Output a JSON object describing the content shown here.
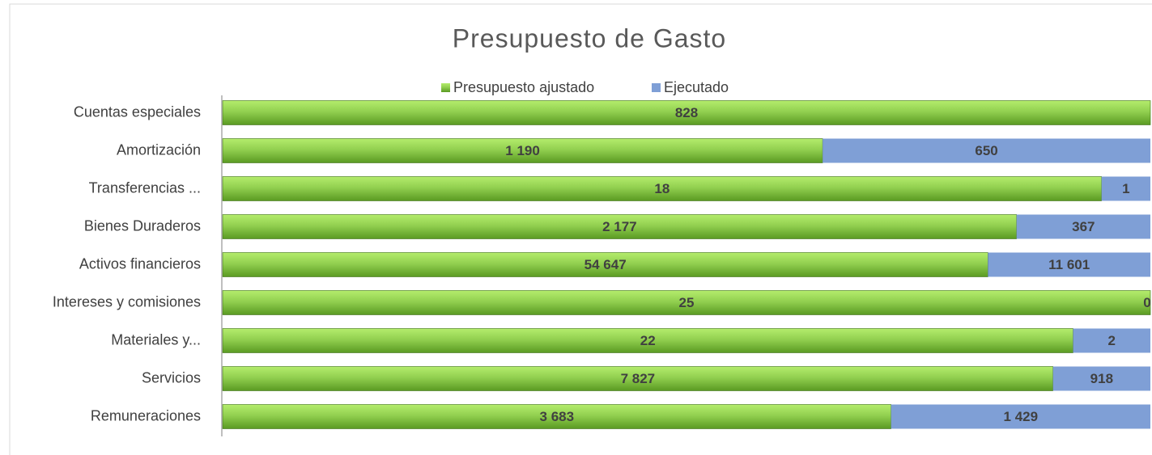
{
  "chart_data": {
    "type": "bar",
    "orientation": "horizontal",
    "stacking": "percent",
    "title": "Presupuesto de Gasto",
    "legend": "top",
    "categories": [
      "Cuentas  especiales",
      "Amortización",
      "Transferencias ...",
      "Bienes  Duraderos",
      "Activos financieros",
      "Intereses y comisiones",
      "Materiales  y...",
      "Servicios",
      "Remuneraciones"
    ],
    "series": [
      {
        "name": "Presupuesto ajustado",
        "color": "#92d050",
        "values": [
          828,
          1190,
          18,
          2177,
          54647,
          25,
          22,
          7827,
          3683
        ],
        "value_labels": [
          "828",
          "1 190",
          "18",
          "2 177",
          "54 647",
          "25",
          "22",
          "7 827",
          "3 683"
        ]
      },
      {
        "name": "Ejecutado",
        "color": "#7f9fd6",
        "values": [
          0,
          650,
          1,
          367,
          11601,
          0,
          2,
          918,
          1429
        ],
        "value_labels": [
          null,
          "650",
          "1",
          "367",
          "11 601",
          "0",
          "2",
          "918",
          "1 429"
        ]
      }
    ]
  }
}
